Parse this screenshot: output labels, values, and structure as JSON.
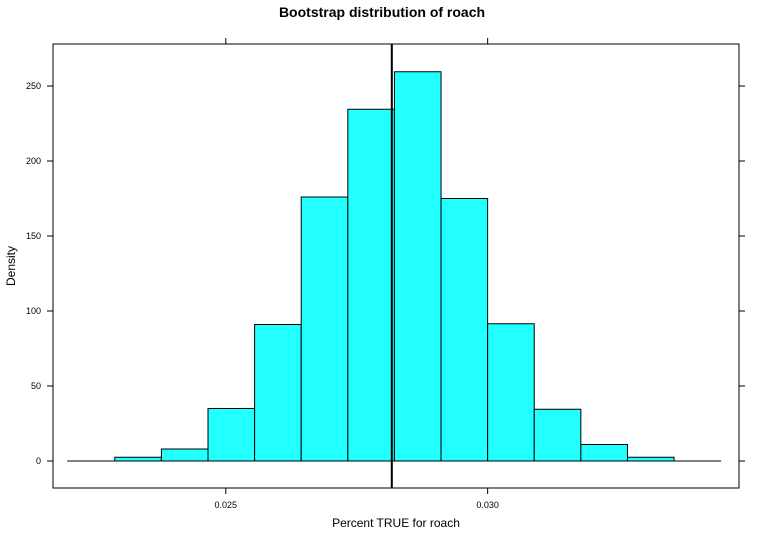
{
  "chart_data": {
    "type": "histogram",
    "title": "Bootstrap distribution of roach",
    "xlabel": "Percent TRUE for roach",
    "ylabel": "Density",
    "xlim": [
      0.0217,
      0.0348
    ],
    "ylim": [
      -18,
      278
    ],
    "x_ticks": [
      {
        "value": 0.025,
        "label": "0.025"
      },
      {
        "value": 0.03,
        "label": "0.030"
      }
    ],
    "y_ticks": [
      {
        "value": 0,
        "label": "0"
      },
      {
        "value": 50,
        "label": "50"
      },
      {
        "value": 100,
        "label": "100"
      },
      {
        "value": 150,
        "label": "150"
      },
      {
        "value": 200,
        "label": "200"
      },
      {
        "value": 250,
        "label": "250"
      }
    ],
    "bins": [
      {
        "x0": 0.02198,
        "x1": 0.02288,
        "density": 0
      },
      {
        "x0": 0.02288,
        "x1": 0.02377,
        "density": 2.5
      },
      {
        "x0": 0.02377,
        "x1": 0.02466,
        "density": 8
      },
      {
        "x0": 0.02466,
        "x1": 0.02555,
        "density": 35
      },
      {
        "x0": 0.02555,
        "x1": 0.02644,
        "density": 91
      },
      {
        "x0": 0.02644,
        "x1": 0.02733,
        "density": 176
      },
      {
        "x0": 0.02733,
        "x1": 0.02822,
        "density": 234.5
      },
      {
        "x0": 0.02822,
        "x1": 0.02911,
        "density": 259.5
      },
      {
        "x0": 0.02911,
        "x1": 0.03,
        "density": 175
      },
      {
        "x0": 0.03,
        "x1": 0.03089,
        "density": 91.5
      },
      {
        "x0": 0.03089,
        "x1": 0.03178,
        "density": 34.5
      },
      {
        "x0": 0.03178,
        "x1": 0.03267,
        "density": 11
      },
      {
        "x0": 0.03267,
        "x1": 0.03356,
        "density": 2.5
      },
      {
        "x0": 0.03356,
        "x1": 0.03445,
        "density": 0
      }
    ],
    "reference_line": {
      "x": 0.02817
    },
    "colors": {
      "bar_fill": "#22ffff",
      "bar_stroke": "#000000",
      "line": "#000000"
    },
    "grid": false,
    "legend": "none"
  }
}
